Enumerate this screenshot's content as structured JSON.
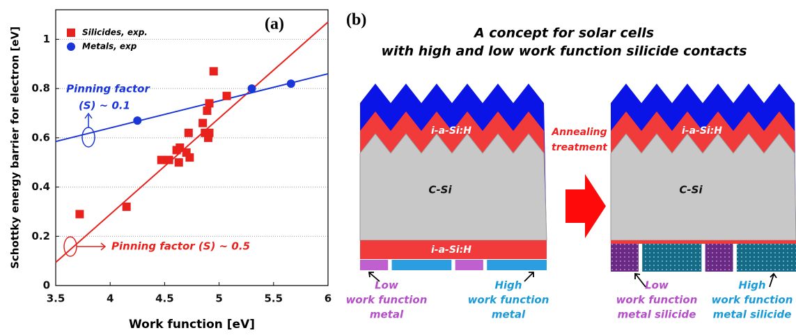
{
  "chart_data": {
    "type": "scatter",
    "panel_label": "(a)",
    "x_label": "Work function [eV]",
    "y_label": "Schottky energy barrier for electron [eV]",
    "xlim": [
      3.5,
      6
    ],
    "ylim": [
      0,
      1.12
    ],
    "xticks": [
      3.5,
      4,
      4.5,
      5,
      5.5,
      6
    ],
    "yticks": [
      0,
      0.2,
      0.4,
      0.6,
      0.8,
      1
    ],
    "grid": true,
    "legend": "upper left",
    "series": [
      {
        "name": "Silicides, exp.",
        "color": "#e8211c",
        "marker": "square",
        "x": [
          3.72,
          4.15,
          4.47,
          4.54,
          4.61,
          4.64,
          4.63,
          4.7,
          4.73,
          4.72,
          4.85,
          4.87,
          4.91,
          4.9,
          4.89,
          4.91,
          4.95,
          5.07
        ],
        "values": [
          0.29,
          0.32,
          0.51,
          0.51,
          0.55,
          0.56,
          0.5,
          0.54,
          0.52,
          0.62,
          0.66,
          0.62,
          0.62,
          0.6,
          0.71,
          0.74,
          0.87,
          0.77
        ]
      },
      {
        "name": "Metals, exp",
        "color": "#1a35d8",
        "marker": "circle",
        "x": [
          4.25,
          5.3,
          5.66
        ],
        "values": [
          0.67,
          0.8,
          0.82
        ]
      }
    ],
    "fit_lines": [
      {
        "color": "#e8211c",
        "x": [
          3.5,
          6
        ],
        "values": [
          0.094,
          1.07
        ]
      },
      {
        "color": "#1a35d8",
        "x": [
          3.5,
          6
        ],
        "values": [
          0.585,
          0.86
        ]
      }
    ],
    "annotations": [
      {
        "text": "Pinning factor",
        "color": "#1a35d8"
      },
      {
        "text": "(S) ~ 0.1",
        "color": "#1a35d8"
      },
      {
        "text": "Pinning factor (S) ~ 0.5",
        "color": "#e8211c"
      }
    ]
  },
  "panel_b": {
    "label": "(b)",
    "title_lines": [
      "A concept for solar cells",
      "with high and low work function silicide contacts"
    ],
    "before": {
      "top_layer": "i-a-Si:H",
      "bulk": "C-Si",
      "bottom_layer": "i-a-Si:H",
      "low_label": [
        "Low",
        "work function",
        "metal"
      ],
      "high_label": [
        "High",
        "work function",
        "metal"
      ]
    },
    "process": [
      "Annealing",
      "treatment"
    ],
    "after": {
      "top_layer": "i-a-Si:H",
      "bulk": "C-Si",
      "low_label": [
        "Low",
        "work function",
        "metal silicide"
      ],
      "high_label": [
        "High",
        "work function",
        "metal silicide"
      ]
    }
  }
}
